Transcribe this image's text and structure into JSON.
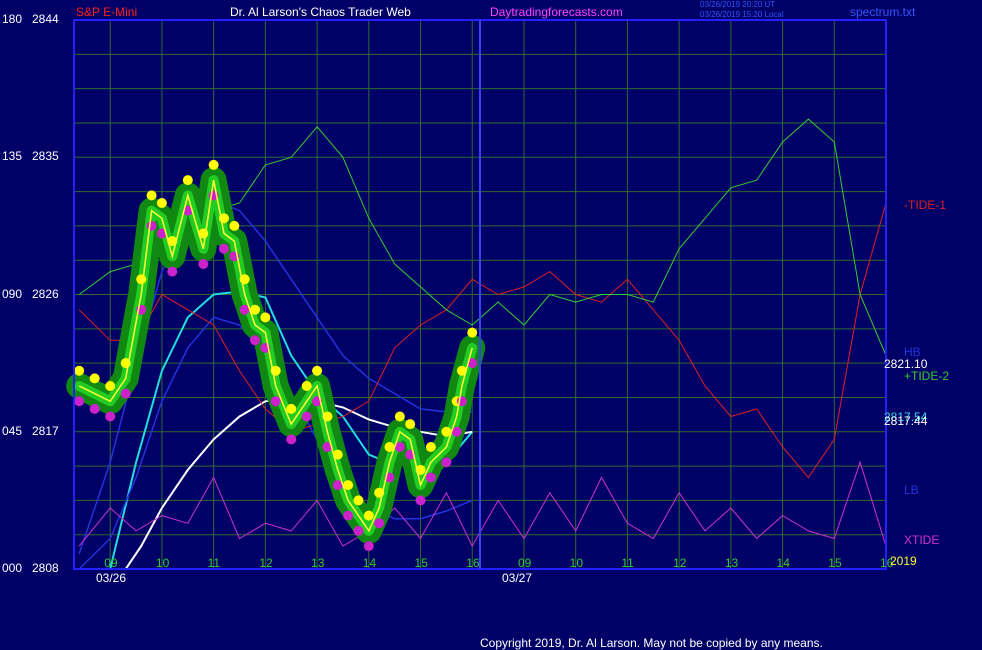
{
  "header": {
    "symbol": "S&P E-Mini",
    "brand": "Dr. Al Larson's Chaos Trader Web",
    "site": "Daytradingforecasts.com",
    "stamp_ut": "03/26/2019 20:20 UT",
    "stamp_local": "03/26/2019 15:20 Local",
    "config_file": "spectrum.txt"
  },
  "footer": {
    "copyright": "Copyright 2019, Dr. Al Larson. May not be copied by any means."
  },
  "colors": {
    "background": "#000066",
    "frame": "#2222ff",
    "grid": "#2e6b2e",
    "symbol_text": "#ff2020",
    "header_text": "#ffffff",
    "site_text": "#ff44ff",
    "price_ladder": "#ffff33",
    "price_high_dot": "#ffff00",
    "price_low_dot": "#cc22cc",
    "price_fill": "#22cc22",
    "price_halo": "#118811",
    "cyan_ma": "#22dddd",
    "white_ma": "#ffffff",
    "blue_line": "#2233dd",
    "tide1": "#dd2222",
    "tide2": "#33cc33",
    "xtide": "#cc33cc"
  },
  "chart_data": {
    "type": "line",
    "title": "S&P E-Mini",
    "y_axis": {
      "ticks": [
        {
          "angle": "180",
          "price": "2844"
        },
        {
          "angle": "135",
          "price": "2835"
        },
        {
          "angle": "090",
          "price": "2826"
        },
        {
          "angle": "045",
          "price": "2817"
        },
        {
          "angle": "000",
          "price": "2808"
        }
      ],
      "range": [
        2808,
        2844
      ]
    },
    "x_axis": {
      "hour_ticks": [
        "09",
        "10",
        "11",
        "12",
        "13",
        "14",
        "15",
        "16",
        "09",
        "10",
        "11",
        "12",
        "13",
        "14",
        "15",
        "16"
      ],
      "date_labels": [
        {
          "label": "03/26",
          "hour": 9
        },
        {
          "label": "03/27",
          "hour": 16.5
        }
      ],
      "year_label": "2019",
      "hour_range": [
        8.3,
        24
      ]
    },
    "right_labels": {
      "tide1": "-TIDE-1",
      "hb": "HB",
      "price_value": "2821.10",
      "tide2": "+TIDE-2",
      "value_a": "2817.54",
      "value_b": "2817.44",
      "lb": "LB",
      "xtide": "XTIDE"
    },
    "series": [
      {
        "name": "S&P E-Mini",
        "x": [
          8.4,
          8.7,
          9.0,
          9.3,
          9.6,
          9.8,
          10.0,
          10.2,
          10.5,
          10.8,
          11.0,
          11.2,
          11.4,
          11.6,
          11.8,
          12.0,
          12.2,
          12.5,
          12.8,
          13.0,
          13.2,
          13.4,
          13.6,
          13.8,
          14.0,
          14.2,
          14.4,
          14.6,
          14.8,
          15.0,
          15.2,
          15.5,
          15.7,
          15.8,
          16.0
        ],
        "y": [
          2820.0,
          2819.5,
          2819.0,
          2820.5,
          2826.0,
          2831.5,
          2831.0,
          2828.5,
          2832.5,
          2829.0,
          2833.5,
          2830.0,
          2829.5,
          2826.0,
          2824.0,
          2823.5,
          2820.0,
          2817.5,
          2819.0,
          2820.0,
          2817.0,
          2814.5,
          2812.5,
          2811.5,
          2810.5,
          2812.0,
          2815.0,
          2817.0,
          2816.5,
          2813.5,
          2815.0,
          2816.0,
          2818.0,
          2820.0,
          2822.5
        ]
      },
      {
        "name": "cyan average",
        "x": [
          9.0,
          9.5,
          10.0,
          10.5,
          11.0,
          11.5,
          12.0,
          12.5,
          13.0,
          13.5,
          14.0,
          14.5,
          15.0,
          15.5,
          16.0
        ],
        "y": [
          2808.0,
          2815.0,
          2821.0,
          2824.5,
          2826.0,
          2826.2,
          2825.8,
          2822.0,
          2819.5,
          2818.0,
          2815.5,
          2814.8,
          2815.5,
          2815.0,
          2817.0
        ]
      },
      {
        "name": "white average",
        "x": [
          9.3,
          9.6,
          10.0,
          10.5,
          11.0,
          11.5,
          12.0,
          12.5,
          13.0,
          13.5,
          14.0,
          14.5,
          15.0,
          15.5,
          16.0
        ],
        "y": [
          2808.0,
          2809.5,
          2812.0,
          2814.5,
          2816.5,
          2818.0,
          2819.0,
          2819.2,
          2819.0,
          2818.6,
          2817.8,
          2817.3,
          2817.0,
          2816.7,
          2817.0
        ]
      },
      {
        "name": "blue upper",
        "x": [
          8.4,
          9.0,
          9.5,
          10.0,
          10.5,
          11.0,
          11.5,
          12.0,
          12.5,
          13.0,
          13.5,
          14.0,
          14.5,
          15.0,
          15.5,
          16.0
        ],
        "y": [
          2809.0,
          2815.0,
          2821.5,
          2827.5,
          2831.0,
          2832.2,
          2831.5,
          2829.5,
          2827.0,
          2824.5,
          2822.0,
          2820.5,
          2819.5,
          2818.5,
          2818.3,
          2818.3
        ]
      },
      {
        "name": "blue lower",
        "x": [
          8.4,
          9.0,
          9.5,
          10.0,
          10.5,
          11.0,
          11.5,
          12.0,
          12.5,
          13.0,
          13.5,
          14.0,
          14.5,
          15.0,
          15.5,
          16.0
        ],
        "y": [
          2808.0,
          2810.0,
          2814.0,
          2819.0,
          2822.5,
          2824.5,
          2824.0,
          2822.0,
          2819.5,
          2816.5,
          2813.5,
          2812.0,
          2811.3,
          2811.3,
          2811.8,
          2812.5
        ]
      },
      {
        "name": "-TIDE-1",
        "x": [
          8.4,
          9.0,
          9.5,
          10.0,
          10.5,
          11.0,
          11.5,
          12.0,
          12.5,
          13.0,
          13.5,
          14.0,
          14.5,
          15.0,
          15.5,
          16.0,
          16.5,
          17.0,
          17.5,
          18.0,
          18.5,
          19.0,
          19.5,
          20.0,
          20.5,
          21.0,
          21.5,
          22.0,
          22.5,
          23.0,
          23.5,
          24.0
        ],
        "y": [
          2825.0,
          2823.0,
          2823.0,
          2826.0,
          2825.0,
          2824.0,
          2821.0,
          2818.5,
          2817.0,
          2817.5,
          2818.0,
          2819.0,
          2822.5,
          2824.0,
          2825.0,
          2827.0,
          2826.0,
          2826.5,
          2827.5,
          2826.0,
          2825.5,
          2827.0,
          2825.0,
          2823.0,
          2820.0,
          2818.0,
          2818.5,
          2816.0,
          2814.0,
          2816.5,
          2826.0,
          2832.0
        ]
      },
      {
        "name": "+TIDE-2",
        "x": [
          8.4,
          9.0,
          9.5,
          10.0,
          10.5,
          11.0,
          11.5,
          12.0,
          12.5,
          13.0,
          13.5,
          14.0,
          14.5,
          15.0,
          15.5,
          16.0,
          16.5,
          17.0,
          17.5,
          18.0,
          18.5,
          19.0,
          19.5,
          20.0,
          20.5,
          21.0,
          21.5,
          22.0,
          22.5,
          23.0,
          23.5,
          24.0
        ],
        "y": [
          2826.0,
          2827.5,
          2828.0,
          2830.5,
          2832.0,
          2831.5,
          2832.0,
          2834.5,
          2835.0,
          2837.0,
          2835.0,
          2831.0,
          2828.0,
          2826.5,
          2825.0,
          2824.0,
          2825.5,
          2824.0,
          2826.0,
          2825.5,
          2826.0,
          2826.0,
          2825.5,
          2829.0,
          2831.0,
          2833.0,
          2833.5,
          2836.0,
          2837.5,
          2836.0,
          2826.0,
          2822.0
        ]
      },
      {
        "name": "XTIDE",
        "x": [
          8.4,
          9.0,
          9.5,
          10.0,
          10.5,
          11.0,
          11.5,
          12.0,
          12.5,
          13.0,
          13.5,
          14.0,
          14.5,
          15.0,
          15.5,
          16.0,
          16.5,
          17.0,
          17.5,
          18.0,
          18.5,
          19.0,
          19.5,
          20.0,
          20.5,
          21.0,
          21.5,
          22.0,
          22.5,
          23.0,
          23.5,
          24.0
        ],
        "y": [
          2809.5,
          2812.0,
          2810.5,
          2811.5,
          2811.0,
          2814.0,
          2810.0,
          2811.0,
          2810.5,
          2812.5,
          2809.5,
          2810.5,
          2812.0,
          2810.0,
          2813.0,
          2809.5,
          2812.5,
          2810.0,
          2813.0,
          2810.5,
          2814.0,
          2811.0,
          2810.0,
          2813.0,
          2810.5,
          2812.0,
          2810.0,
          2811.5,
          2810.5,
          2810.0,
          2815.0,
          2809.5
        ]
      }
    ]
  }
}
